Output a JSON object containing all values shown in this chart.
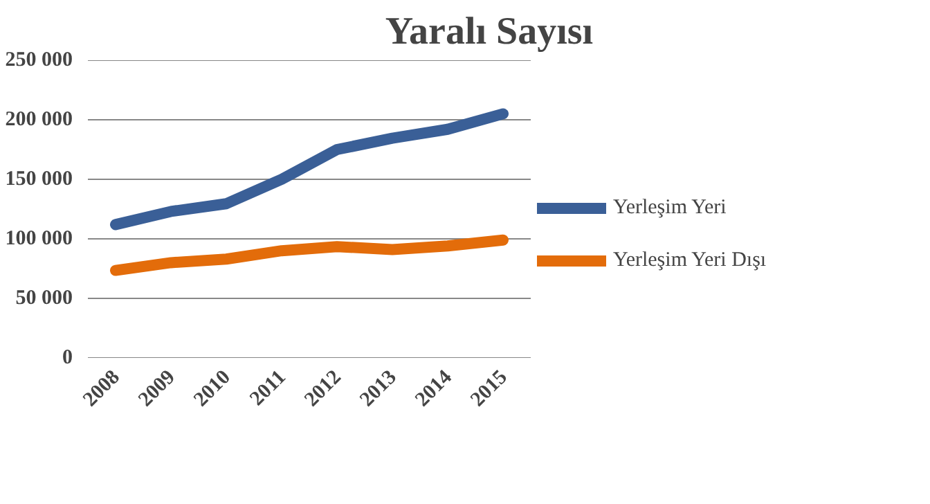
{
  "chart_data": {
    "type": "line",
    "title": "Yaralı Sayısı",
    "categories": [
      "2008",
      "2009",
      "2010",
      "2011",
      "2012",
      "2013",
      "2014",
      "2015"
    ],
    "series": [
      {
        "name": "Yerleşim Yeri",
        "color": "#3a5f97",
        "values": [
          112000,
          123000,
          129500,
          150000,
          175000,
          184500,
          192000,
          205000
        ]
      },
      {
        "name": "Yerleşim Yeri Dışı",
        "color": "#e36c0a",
        "values": [
          73500,
          80000,
          83000,
          90000,
          93500,
          91000,
          94000,
          99000
        ]
      }
    ],
    "ylim": [
      0,
      250000
    ],
    "yticks": [
      {
        "value": 0,
        "label": "0"
      },
      {
        "value": 50000,
        "label": "50 000"
      },
      {
        "value": 100000,
        "label": "100 000"
      },
      {
        "value": 150000,
        "label": "150 000"
      },
      {
        "value": 200000,
        "label": "200 000"
      },
      {
        "value": 250000,
        "label": "250 000"
      }
    ],
    "grid": "y",
    "legend": "right",
    "marker": "none",
    "line_style": "solid"
  }
}
